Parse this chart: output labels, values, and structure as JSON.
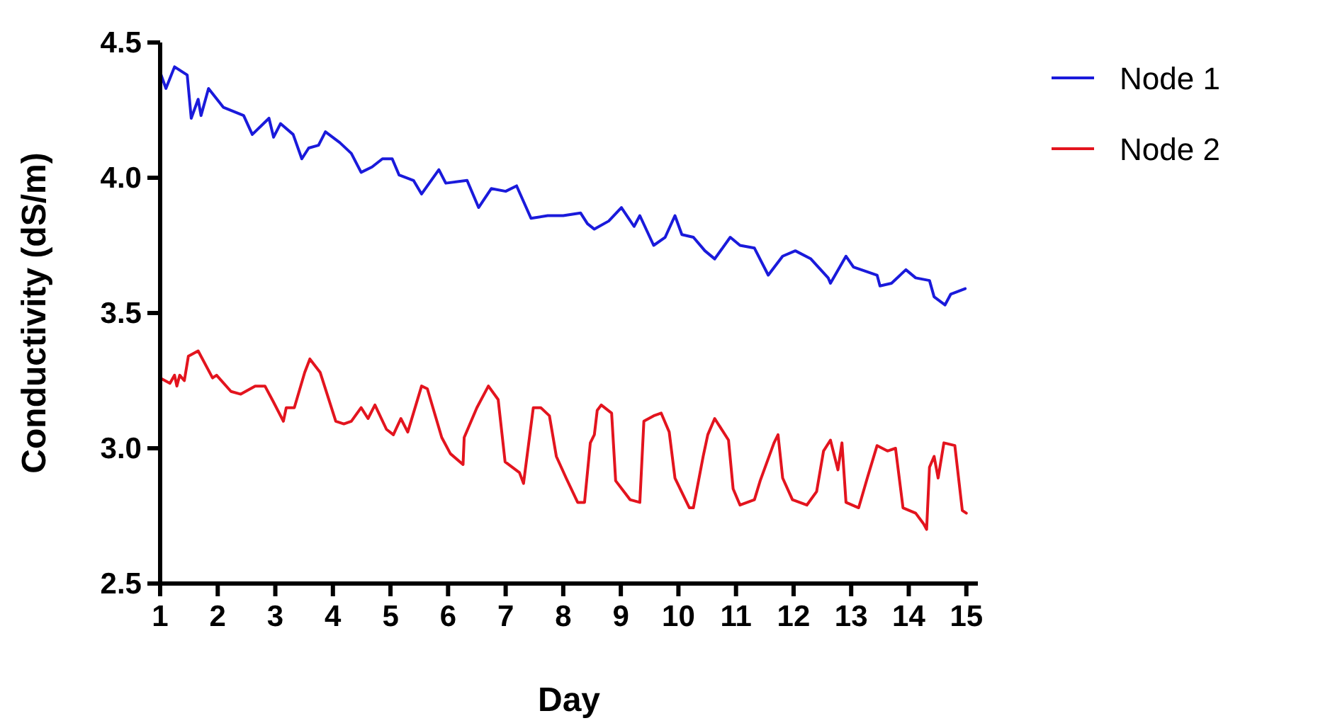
{
  "chart_data": {
    "type": "line",
    "xlabel": "Day",
    "ylabel": "Conductivity (dS/m)",
    "xlim": [
      1,
      15.2
    ],
    "xticks": [
      1,
      2,
      3,
      4,
      5,
      6,
      7,
      8,
      9,
      10,
      11,
      12,
      13,
      14,
      15
    ],
    "ylim": [
      2.5,
      4.5
    ],
    "yticks": [
      2.5,
      {
        "value": 3,
        "label": "3.0"
      },
      3.5,
      {
        "value": 4,
        "label": "4.0"
      },
      4.5
    ],
    "grid": false,
    "legend": "top right",
    "line_style": "solid",
    "series": [
      {
        "name": "Node 1",
        "color": "#1a1adb",
        "x": [
          1.0,
          1.1,
          1.25,
          1.47,
          1.54,
          1.66,
          1.71,
          1.84,
          2.1,
          2.45,
          2.6,
          2.89,
          2.97,
          3.09,
          3.31,
          3.46,
          3.58,
          3.75,
          3.87,
          4.12,
          4.32,
          4.49,
          4.68,
          4.86,
          5.03,
          5.15,
          5.4,
          5.54,
          5.84,
          5.96,
          6.33,
          6.53,
          6.75,
          7.0,
          7.19,
          7.44,
          7.73,
          8.0,
          8.3,
          8.42,
          8.54,
          8.79,
          9.01,
          9.23,
          9.33,
          9.57,
          9.77,
          9.94,
          10.06,
          10.26,
          10.46,
          10.63,
          10.9,
          11.07,
          11.32,
          11.56,
          11.81,
          12.03,
          12.3,
          12.6,
          12.64,
          12.91,
          13.04,
          13.45,
          13.5,
          13.7,
          13.95,
          14.12,
          14.36,
          14.44,
          14.63,
          14.73,
          14.98
        ],
        "values": [
          4.39,
          4.33,
          4.41,
          4.38,
          4.22,
          4.29,
          4.23,
          4.33,
          4.26,
          4.23,
          4.16,
          4.22,
          4.15,
          4.2,
          4.16,
          4.07,
          4.11,
          4.12,
          4.17,
          4.13,
          4.09,
          4.02,
          4.04,
          4.07,
          4.07,
          4.01,
          3.99,
          3.94,
          4.03,
          3.98,
          3.99,
          3.89,
          3.96,
          3.95,
          3.97,
          3.85,
          3.86,
          3.86,
          3.87,
          3.83,
          3.81,
          3.84,
          3.89,
          3.82,
          3.86,
          3.75,
          3.78,
          3.86,
          3.79,
          3.78,
          3.73,
          3.7,
          3.78,
          3.75,
          3.74,
          3.64,
          3.71,
          3.73,
          3.7,
          3.63,
          3.61,
          3.71,
          3.67,
          3.64,
          3.6,
          3.61,
          3.66,
          3.63,
          3.62,
          3.56,
          3.53,
          3.57,
          3.59
        ]
      },
      {
        "name": "Node 2",
        "color": "#e3141e",
        "x": [
          1.0,
          1.17,
          1.25,
          1.29,
          1.34,
          1.42,
          1.49,
          1.66,
          1.91,
          1.98,
          2.23,
          2.4,
          2.65,
          2.82,
          2.97,
          3.14,
          3.19,
          3.33,
          3.51,
          3.6,
          3.78,
          4.05,
          4.19,
          4.32,
          4.49,
          4.61,
          4.73,
          4.93,
          5.05,
          5.18,
          5.3,
          5.54,
          5.64,
          5.89,
          6.04,
          6.26,
          6.28,
          6.5,
          6.7,
          6.87,
          6.99,
          7.24,
          7.31,
          7.48,
          7.61,
          7.76,
          7.88,
          8.05,
          8.25,
          8.37,
          8.47,
          8.54,
          8.59,
          8.66,
          8.84,
          8.91,
          9.16,
          9.33,
          9.4,
          9.57,
          9.7,
          9.84,
          9.94,
          10.19,
          10.26,
          10.43,
          10.51,
          10.63,
          10.87,
          10.95,
          11.07,
          11.32,
          11.42,
          11.66,
          11.73,
          11.81,
          11.98,
          12.23,
          12.4,
          12.52,
          12.64,
          12.77,
          12.84,
          12.91,
          13.13,
          13.28,
          13.45,
          13.63,
          13.77,
          13.9,
          14.12,
          14.26,
          14.31,
          14.36,
          14.44,
          14.51,
          14.61,
          14.8,
          14.93,
          15.0
        ],
        "values": [
          3.26,
          3.24,
          3.27,
          3.23,
          3.27,
          3.25,
          3.34,
          3.36,
          3.26,
          3.27,
          3.21,
          3.2,
          3.23,
          3.23,
          3.17,
          3.1,
          3.15,
          3.15,
          3.28,
          3.33,
          3.28,
          3.1,
          3.09,
          3.1,
          3.15,
          3.11,
          3.16,
          3.07,
          3.05,
          3.11,
          3.06,
          3.23,
          3.22,
          3.04,
          2.98,
          2.94,
          3.04,
          3.15,
          3.23,
          3.18,
          2.95,
          2.91,
          2.87,
          3.15,
          3.15,
          3.12,
          2.97,
          2.89,
          2.8,
          2.8,
          3.02,
          3.05,
          3.14,
          3.16,
          3.13,
          2.88,
          2.81,
          2.8,
          3.1,
          3.12,
          3.13,
          3.06,
          2.89,
          2.78,
          2.78,
          2.97,
          3.05,
          3.11,
          3.03,
          2.85,
          2.79,
          2.81,
          2.88,
          3.02,
          3.05,
          2.89,
          2.81,
          2.79,
          2.84,
          2.99,
          3.03,
          2.92,
          3.02,
          2.8,
          2.78,
          2.89,
          3.01,
          2.99,
          3.0,
          2.78,
          2.76,
          2.72,
          2.7,
          2.93,
          2.97,
          2.89,
          3.02,
          3.01,
          2.77,
          2.76
        ]
      }
    ]
  }
}
